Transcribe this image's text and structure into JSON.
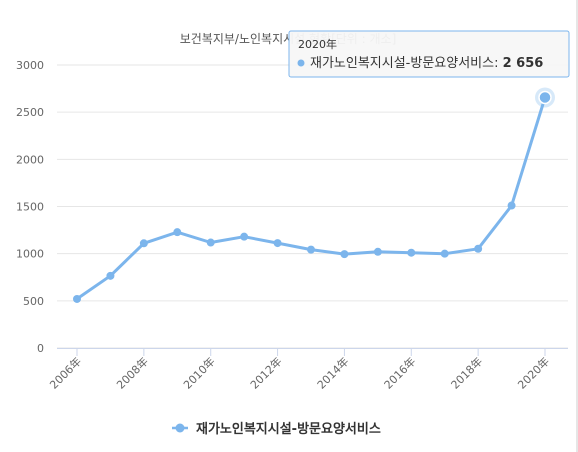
{
  "chart_data": {
    "type": "line",
    "title": "",
    "subtitle": "보건복지부/노인복지시설 현황[단위 : 개소]",
    "categories": [
      "2006年",
      "2007年",
      "2008年",
      "2009年",
      "2010年",
      "2011年",
      "2012年",
      "2013年",
      "2014年",
      "2015年",
      "2016年",
      "2017年",
      "2018年",
      "2019年",
      "2020年"
    ],
    "x_tick_labels": [
      "2006年",
      "2008年",
      "2010年",
      "2012年",
      "2014年",
      "2016年",
      "2018年",
      "2020年"
    ],
    "series": [
      {
        "name": "재가노인복지시설-방문요양서비스",
        "values": [
          520,
          765,
          1110,
          1228,
          1118,
          1180,
          1112,
          1043,
          995,
          1020,
          1010,
          1000,
          1052,
          1510,
          2656
        ]
      }
    ],
    "ylim": [
      0,
      3000
    ],
    "y_ticks": [
      "0",
      "500",
      "1000",
      "1500",
      "2000",
      "2500",
      "3000"
    ],
    "grid": true,
    "legend": "bottom",
    "color": "#7cb5ec",
    "tooltip": {
      "title": "2020年",
      "series": "재가노인복지시설-방문요양서비스",
      "value": "2 656"
    }
  }
}
